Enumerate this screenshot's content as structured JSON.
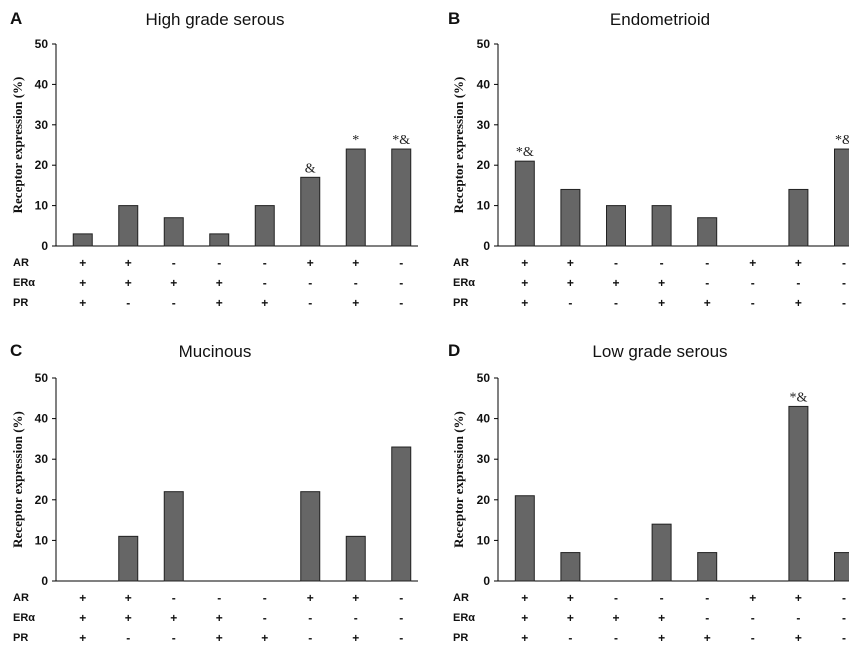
{
  "chart_data": [
    {
      "type": "bar",
      "panel": "A",
      "title": "High grade serous",
      "ylabel": "Receptor expression (%)",
      "ylim": [
        0,
        50
      ],
      "yticks": [
        0,
        10,
        20,
        30,
        40,
        50
      ],
      "rows": [
        "AR",
        "ERα",
        "PR"
      ],
      "signs": {
        "AR": [
          "+",
          "+",
          "-",
          "-",
          "-",
          "+",
          "+",
          "-"
        ],
        "ERα": [
          "+",
          "+",
          "+",
          "+",
          "-",
          "-",
          "-",
          "-"
        ],
        "PR": [
          "+",
          "-",
          "-",
          "+",
          "+",
          "-",
          "+",
          "-"
        ]
      },
      "values": [
        3,
        10,
        7,
        3,
        10,
        17,
        24,
        24
      ],
      "annotations": [
        "",
        "",
        "",
        "",
        "",
        "&",
        "*",
        "*&"
      ]
    },
    {
      "type": "bar",
      "panel": "B",
      "title": "Endometrioid",
      "ylabel": "Receptor expression (%)",
      "ylim": [
        0,
        50
      ],
      "yticks": [
        0,
        10,
        20,
        30,
        40,
        50
      ],
      "rows": [
        "AR",
        "ERα",
        "PR"
      ],
      "signs": {
        "AR": [
          "+",
          "+",
          "-",
          "-",
          "-",
          "+",
          "+",
          "-"
        ],
        "ERα": [
          "+",
          "+",
          "+",
          "+",
          "-",
          "-",
          "-",
          "-"
        ],
        "PR": [
          "+",
          "-",
          "-",
          "+",
          "+",
          "-",
          "+",
          "-"
        ]
      },
      "values": [
        21,
        14,
        10,
        10,
        7,
        0,
        14,
        24
      ],
      "annotations": [
        "*&",
        "",
        "",
        "",
        "",
        "",
        "",
        "*&"
      ]
    },
    {
      "type": "bar",
      "panel": "C",
      "title": "Mucinous",
      "ylabel": "Receptor expression (%)",
      "ylim": [
        0,
        50
      ],
      "yticks": [
        0,
        10,
        20,
        30,
        40,
        50
      ],
      "rows": [
        "AR",
        "ERα",
        "PR"
      ],
      "signs": {
        "AR": [
          "+",
          "+",
          "-",
          "-",
          "-",
          "+",
          "+",
          "-"
        ],
        "ERα": [
          "+",
          "+",
          "+",
          "+",
          "-",
          "-",
          "-",
          "-"
        ],
        "PR": [
          "+",
          "-",
          "-",
          "+",
          "+",
          "-",
          "+",
          "-"
        ]
      },
      "values": [
        0,
        11,
        22,
        0,
        0,
        22,
        11,
        33
      ],
      "annotations": [
        "",
        "",
        "",
        "",
        "",
        "",
        "",
        ""
      ]
    },
    {
      "type": "bar",
      "panel": "D",
      "title": "Low grade serous",
      "ylabel": "Receptor expression (%)",
      "ylim": [
        0,
        50
      ],
      "yticks": [
        0,
        10,
        20,
        30,
        40,
        50
      ],
      "rows": [
        "AR",
        "ERα",
        "PR"
      ],
      "signs": {
        "AR": [
          "+",
          "+",
          "-",
          "-",
          "-",
          "+",
          "+",
          "-"
        ],
        "ERα": [
          "+",
          "+",
          "+",
          "+",
          "-",
          "-",
          "-",
          "-"
        ],
        "PR": [
          "+",
          "-",
          "-",
          "+",
          "+",
          "-",
          "+",
          "-"
        ]
      },
      "values": [
        21,
        7,
        0,
        14,
        7,
        0,
        43,
        7
      ],
      "annotations": [
        "",
        "",
        "",
        "",
        "",
        "",
        "*&",
        ""
      ]
    }
  ]
}
